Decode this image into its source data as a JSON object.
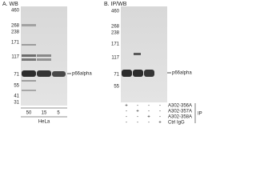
{
  "panel_a": {
    "title": "A. WB",
    "markers": [
      "460",
      "268",
      "238",
      "171",
      "117",
      "71",
      "55",
      "41",
      "31"
    ],
    "target": "p66alpha",
    "lanes": [
      "50",
      "15",
      "5"
    ],
    "sample": "HeLa"
  },
  "panel_b": {
    "title": "B. IP/WB",
    "markers": [
      "460",
      "268",
      "238",
      "171",
      "117",
      "71",
      "55"
    ],
    "target": "p66alpha",
    "rows": [
      {
        "label": "A302-356A",
        "signs": [
          "+",
          "-",
          "-",
          "-"
        ]
      },
      {
        "label": "A302-357A",
        "signs": [
          "-",
          "+",
          "-",
          "-"
        ]
      },
      {
        "label": "A302-358A",
        "signs": [
          "-",
          "-",
          "+",
          "-"
        ]
      },
      {
        "label": "Ctrl IgG",
        "signs": [
          "-",
          "-",
          "-",
          "+"
        ]
      }
    ],
    "group": "IP"
  }
}
